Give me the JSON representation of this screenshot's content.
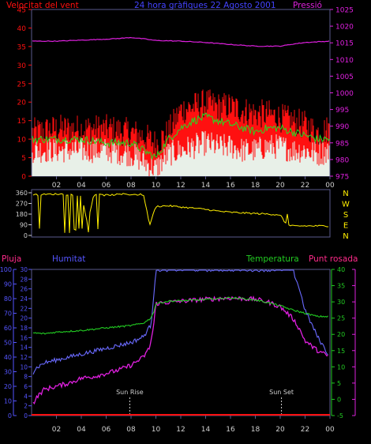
{
  "colors": {
    "background": "#000000",
    "frame": "#5a5a8c",
    "tick_text": "#cfcfcf",
    "red": "#ff1010",
    "white": "#e8f0e8",
    "green": "#22dd22",
    "magenta": "#e020e0",
    "yellow": "#ffee00",
    "blue": "#6a6aff",
    "pink": "#ff2a8a",
    "axis_green": "#22cc22",
    "axis_blue": "#5555ff",
    "axis_magenta": "#dd22dd"
  },
  "chart_data": [
    {
      "type": "line",
      "title": "24 hora gràfiques   22 Agosto 2001",
      "ylabel_left": "Velocitat del vent",
      "ylabel_right": "Pressió",
      "left_ylim": [
        0,
        45
      ],
      "left_yticks": [
        0,
        5,
        10,
        15,
        20,
        25,
        30,
        35,
        40,
        45
      ],
      "right_ylim": [
        975,
        1025
      ],
      "right_yticks": [
        975,
        980,
        985,
        990,
        995,
        1000,
        1005,
        1010,
        1015,
        1020,
        1025
      ],
      "x_tick_labels": [
        "02",
        "04",
        "06",
        "08",
        "10",
        "12",
        "14",
        "16",
        "18",
        "20",
        "22",
        "00"
      ],
      "series": [
        {
          "kind": "gust",
          "color_key": "red",
          "hours": [
            0,
            2,
            4,
            6,
            8,
            9,
            10,
            11,
            12,
            13,
            14,
            15,
            16,
            17,
            18,
            19,
            20,
            21,
            22,
            23,
            24
          ],
          "values": [
            11,
            12,
            12,
            12,
            11,
            10,
            8,
            11,
            17,
            18,
            19,
            18,
            18,
            17,
            16,
            16,
            15,
            14,
            13,
            11,
            12
          ]
        },
        {
          "kind": "average",
          "color_key": "green",
          "hours": [
            0,
            2,
            4,
            6,
            8,
            9,
            10,
            11,
            12,
            13,
            14,
            15,
            16,
            17,
            18,
            19,
            20,
            21,
            22,
            23,
            24
          ],
          "values": [
            10,
            10,
            10,
            9,
            9,
            7,
            5,
            10,
            13,
            15,
            16,
            15,
            14,
            13,
            12,
            13,
            13,
            12,
            11,
            10,
            10
          ]
        },
        {
          "kind": "minimum",
          "color_key": "white",
          "hours": [
            0,
            2,
            4,
            6,
            8,
            9,
            10,
            11,
            12,
            13,
            14,
            15,
            16,
            17,
            18,
            19,
            20,
            21,
            22,
            23,
            24
          ],
          "values": [
            7,
            7,
            7,
            7,
            6,
            4,
            2,
            6,
            7,
            8,
            9,
            8,
            8,
            7,
            7,
            8,
            8,
            7,
            7,
            6,
            7
          ]
        },
        {
          "kind": "pressure",
          "color_key": "magenta",
          "axis": "right",
          "hours": [
            0,
            2,
            4,
            6,
            7,
            8,
            9,
            10,
            12,
            14,
            16,
            18,
            20,
            21,
            22,
            24
          ],
          "values": [
            1015.5,
            1015.5,
            1015.8,
            1016.1,
            1016.3,
            1016.6,
            1016.2,
            1015.7,
            1015.5,
            1015.1,
            1014.5,
            1014.0,
            1014.0,
            1014.6,
            1015.1,
            1015.5
          ]
        }
      ]
    },
    {
      "type": "line",
      "ylim": [
        0,
        360
      ],
      "left_yticks": [
        0,
        90,
        180,
        270,
        360
      ],
      "right_labels": [
        "N",
        "W",
        "S",
        "E",
        "N"
      ],
      "x_tick_labels": [],
      "series": [
        {
          "kind": "wind_direction",
          "color_key": "yellow",
          "hours": [
            0,
            0.5,
            1,
            2,
            3,
            4,
            4.5,
            5,
            6,
            7,
            7.5,
            8,
            9,
            9.5,
            10,
            11,
            12,
            13,
            14,
            15,
            16,
            17,
            18,
            19,
            20,
            20.5,
            21,
            22,
            23,
            24
          ],
          "values": [
            350,
            340,
            345,
            350,
            345,
            340,
            100,
            345,
            340,
            345,
            350,
            345,
            345,
            90,
            245,
            250,
            240,
            230,
            220,
            205,
            195,
            190,
            185,
            180,
            175,
            90,
            80,
            80,
            80,
            80
          ]
        }
      ]
    },
    {
      "type": "line",
      "ylabel_left_outer": "Pluja",
      "ylabel_left_inner": "Humitat",
      "ylabel_right_inner": "Temperatura",
      "ylabel_right_outer": "Punt rosada",
      "humidity_ylim": [
        0,
        100
      ],
      "humidity_yticks": [
        0,
        10,
        20,
        30,
        40,
        50,
        60,
        70,
        80,
        90,
        100
      ],
      "rain_ylim": [
        0,
        30
      ],
      "rain_yticks": [
        0,
        2,
        4,
        6,
        8,
        10,
        12,
        14,
        16,
        18,
        20,
        22,
        24,
        26,
        28,
        30
      ],
      "temp_ylim": [
        -5,
        40
      ],
      "temp_yticks": [
        -5,
        0,
        5,
        10,
        15,
        20,
        25,
        30,
        35,
        40
      ],
      "x_tick_labels": [
        "02",
        "04",
        "06",
        "08",
        "10",
        "12",
        "14",
        "16",
        "18",
        "20",
        "22",
        "00"
      ],
      "annotations": [
        {
          "text": "Sun Rise",
          "hour": 7.9
        },
        {
          "text": "Sun Set",
          "hour": 20.1
        }
      ],
      "series": [
        {
          "kind": "humidity",
          "color_key": "blue",
          "axis": "humidity",
          "hours": [
            0,
            0.3,
            1,
            2,
            3,
            4,
            5,
            6,
            7,
            8,
            9,
            9.6,
            9.8,
            10,
            12,
            14,
            16,
            18,
            19,
            20,
            21,
            21.5,
            22,
            23,
            24
          ],
          "values": [
            27,
            32,
            36,
            38,
            40,
            42,
            44,
            46,
            48,
            50,
            54,
            62,
            80,
            100,
            100,
            100,
            100,
            100,
            100,
            100,
            100,
            88,
            72,
            54,
            40
          ]
        },
        {
          "kind": "temperature",
          "color_key": "axis_green",
          "axis": "temp",
          "hours": [
            0,
            1,
            2,
            4,
            6,
            8,
            9,
            9.5,
            9.8,
            10,
            11,
            13,
            15,
            16,
            17,
            18,
            19,
            20,
            21,
            22,
            23,
            24
          ],
          "values": [
            20.5,
            20.2,
            20.7,
            21.2,
            22,
            22.7,
            23.5,
            24.7,
            26.5,
            29.5,
            30.2,
            30.5,
            31,
            31.3,
            31,
            30.6,
            29.8,
            28.8,
            27.5,
            26.5,
            25.5,
            25.5
          ]
        },
        {
          "kind": "dew_point",
          "color_key": "magenta",
          "axis": "temp",
          "hours": [
            0,
            0.5,
            1,
            2,
            3,
            4,
            5,
            6,
            7,
            8,
            9,
            9.5,
            9.8,
            10,
            12,
            14,
            16,
            18,
            19,
            20,
            21,
            21.5,
            22,
            23,
            24
          ],
          "values": [
            -2,
            1,
            3,
            4,
            5,
            6.5,
            7,
            8,
            9,
            10.5,
            13,
            16,
            22,
            29.5,
            30.2,
            30.8,
            31.2,
            30.8,
            30,
            28.5,
            25,
            22,
            18,
            15,
            13
          ]
        },
        {
          "kind": "rain",
          "color_key": "red",
          "axis": "rain",
          "hours": [
            0,
            24
          ],
          "values": [
            0,
            0
          ]
        }
      ]
    }
  ]
}
